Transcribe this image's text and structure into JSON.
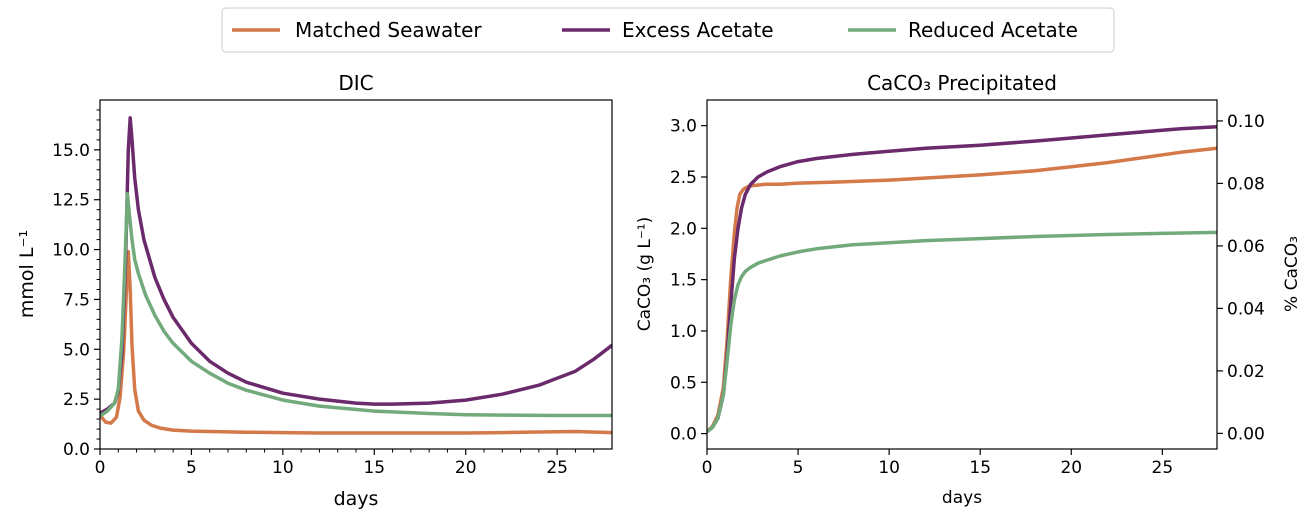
{
  "colors": {
    "matched": "#d4794a",
    "excess": "#6b2a6b",
    "reduced": "#72aa7c"
  },
  "legend": {
    "matched": "Matched Seawater",
    "excess": "Excess Acetate",
    "reduced": "Reduced Acetate"
  },
  "chart_data": [
    {
      "type": "line",
      "title": "DIC",
      "xlabel": "days",
      "ylabel": "mmol L⁻¹",
      "xlim": [
        0,
        28
      ],
      "ylim": [
        0,
        17.5
      ],
      "xticks": [
        0,
        5,
        10,
        15,
        20,
        25
      ],
      "xtick_labels": [
        "0",
        "5",
        "10",
        "15",
        "20",
        "25"
      ],
      "yticks": [
        0,
        2.5,
        5,
        7.5,
        10,
        12.5,
        15
      ],
      "ytick_labels": [
        "0.0",
        "2.5",
        "5.0",
        "7.5",
        "10.0",
        "12.5",
        "15.0"
      ],
      "series": [
        {
          "name": "Matched Seawater",
          "x": [
            0,
            0.3,
            0.6,
            0.9,
            1.1,
            1.3,
            1.45,
            1.55,
            1.65,
            1.75,
            1.9,
            2.1,
            2.4,
            2.8,
            3.3,
            4,
            5,
            6,
            8,
            10,
            12,
            15,
            18,
            20,
            22,
            24,
            26,
            28
          ],
          "y": [
            1.7,
            1.35,
            1.3,
            1.6,
            2.6,
            5.0,
            8.0,
            9.9,
            8.0,
            5.2,
            3.0,
            1.9,
            1.45,
            1.2,
            1.05,
            0.95,
            0.9,
            0.88,
            0.84,
            0.82,
            0.8,
            0.8,
            0.8,
            0.8,
            0.82,
            0.85,
            0.88,
            0.82
          ]
        },
        {
          "name": "Excess Acetate",
          "x": [
            0,
            0.4,
            0.8,
            1.0,
            1.2,
            1.4,
            1.55,
            1.65,
            1.75,
            1.9,
            2.1,
            2.4,
            3,
            3.5,
            4,
            5,
            6,
            7,
            8,
            10,
            12,
            14,
            15,
            16,
            18,
            20,
            22,
            24,
            26,
            27,
            28
          ],
          "y": [
            1.8,
            2.0,
            2.3,
            2.9,
            4.8,
            9.5,
            15.0,
            16.6,
            15.5,
            13.6,
            12.0,
            10.5,
            8.6,
            7.5,
            6.6,
            5.3,
            4.4,
            3.8,
            3.35,
            2.8,
            2.5,
            2.3,
            2.25,
            2.25,
            2.3,
            2.45,
            2.75,
            3.2,
            3.9,
            4.5,
            5.2
          ]
        },
        {
          "name": "Reduced Acetate",
          "x": [
            0,
            0.4,
            0.8,
            1.0,
            1.2,
            1.35,
            1.5,
            1.6,
            1.75,
            1.9,
            2.1,
            2.5,
            3,
            3.5,
            4,
            5,
            6,
            7,
            8,
            10,
            12,
            15,
            18,
            20,
            22,
            25,
            28
          ],
          "y": [
            1.65,
            1.9,
            2.3,
            3.0,
            5.5,
            9.0,
            12.8,
            11.8,
            10.5,
            9.5,
            8.8,
            7.7,
            6.7,
            5.9,
            5.3,
            4.4,
            3.8,
            3.3,
            2.95,
            2.45,
            2.15,
            1.9,
            1.78,
            1.72,
            1.7,
            1.68,
            1.68
          ]
        }
      ]
    },
    {
      "type": "line",
      "title": "CaCO₃ Precipitated",
      "xlabel": "days",
      "ylabel": "CaCO₃ (g L⁻¹)",
      "ylabel_right": "% CaCO₃",
      "xlim": [
        0,
        28
      ],
      "ylim": [
        -0.15,
        3.25
      ],
      "ylim_right": [
        -0.005,
        0.1067
      ],
      "xticks": [
        0,
        5,
        10,
        15,
        20,
        25
      ],
      "xtick_labels": [
        "0",
        "5",
        "10",
        "15",
        "20",
        "25"
      ],
      "yticks": [
        0,
        0.5,
        1,
        1.5,
        2,
        2.5,
        3
      ],
      "ytick_labels": [
        "0.0",
        "0.5",
        "1.0",
        "1.5",
        "2.0",
        "2.5",
        "3.0"
      ],
      "yticks_right": [
        0,
        0.02,
        0.04,
        0.06,
        0.08,
        0.1
      ],
      "ytick_labels_right": [
        "0.00",
        "0.02",
        "0.04",
        "0.06",
        "0.08",
        "0.10"
      ],
      "series": [
        {
          "name": "Matched Seawater",
          "x": [
            0,
            0.3,
            0.6,
            0.9,
            1.1,
            1.3,
            1.5,
            1.65,
            1.8,
            2.0,
            2.3,
            2.7,
            3.2,
            4,
            5,
            7,
            10,
            13,
            15,
            18,
            20,
            22,
            24,
            26,
            28
          ],
          "y": [
            0.02,
            0.07,
            0.18,
            0.45,
            0.9,
            1.5,
            1.95,
            2.2,
            2.33,
            2.38,
            2.41,
            2.42,
            2.43,
            2.43,
            2.44,
            2.45,
            2.47,
            2.5,
            2.52,
            2.56,
            2.6,
            2.64,
            2.69,
            2.74,
            2.78
          ]
        },
        {
          "name": "Excess Acetate",
          "x": [
            0,
            0.3,
            0.6,
            0.9,
            1.1,
            1.3,
            1.5,
            1.7,
            1.9,
            2.1,
            2.4,
            2.8,
            3.3,
            4,
            5,
            6,
            8,
            10,
            12,
            15,
            18,
            20,
            22,
            24,
            26,
            28
          ],
          "y": [
            0.02,
            0.06,
            0.15,
            0.38,
            0.75,
            1.25,
            1.7,
            2.0,
            2.2,
            2.33,
            2.43,
            2.5,
            2.55,
            2.6,
            2.65,
            2.68,
            2.72,
            2.75,
            2.78,
            2.81,
            2.85,
            2.88,
            2.91,
            2.94,
            2.97,
            2.99
          ]
        },
        {
          "name": "Reduced Acetate",
          "x": [
            0,
            0.3,
            0.6,
            0.9,
            1.1,
            1.3,
            1.5,
            1.7,
            1.9,
            2.1,
            2.4,
            2.8,
            3.3,
            4,
            5,
            6,
            8,
            10,
            12,
            15,
            18,
            20,
            22,
            25,
            28
          ],
          "y": [
            0.02,
            0.06,
            0.15,
            0.38,
            0.7,
            1.05,
            1.3,
            1.45,
            1.53,
            1.58,
            1.62,
            1.66,
            1.69,
            1.73,
            1.77,
            1.8,
            1.84,
            1.86,
            1.88,
            1.9,
            1.92,
            1.93,
            1.94,
            1.95,
            1.96
          ]
        }
      ]
    }
  ]
}
